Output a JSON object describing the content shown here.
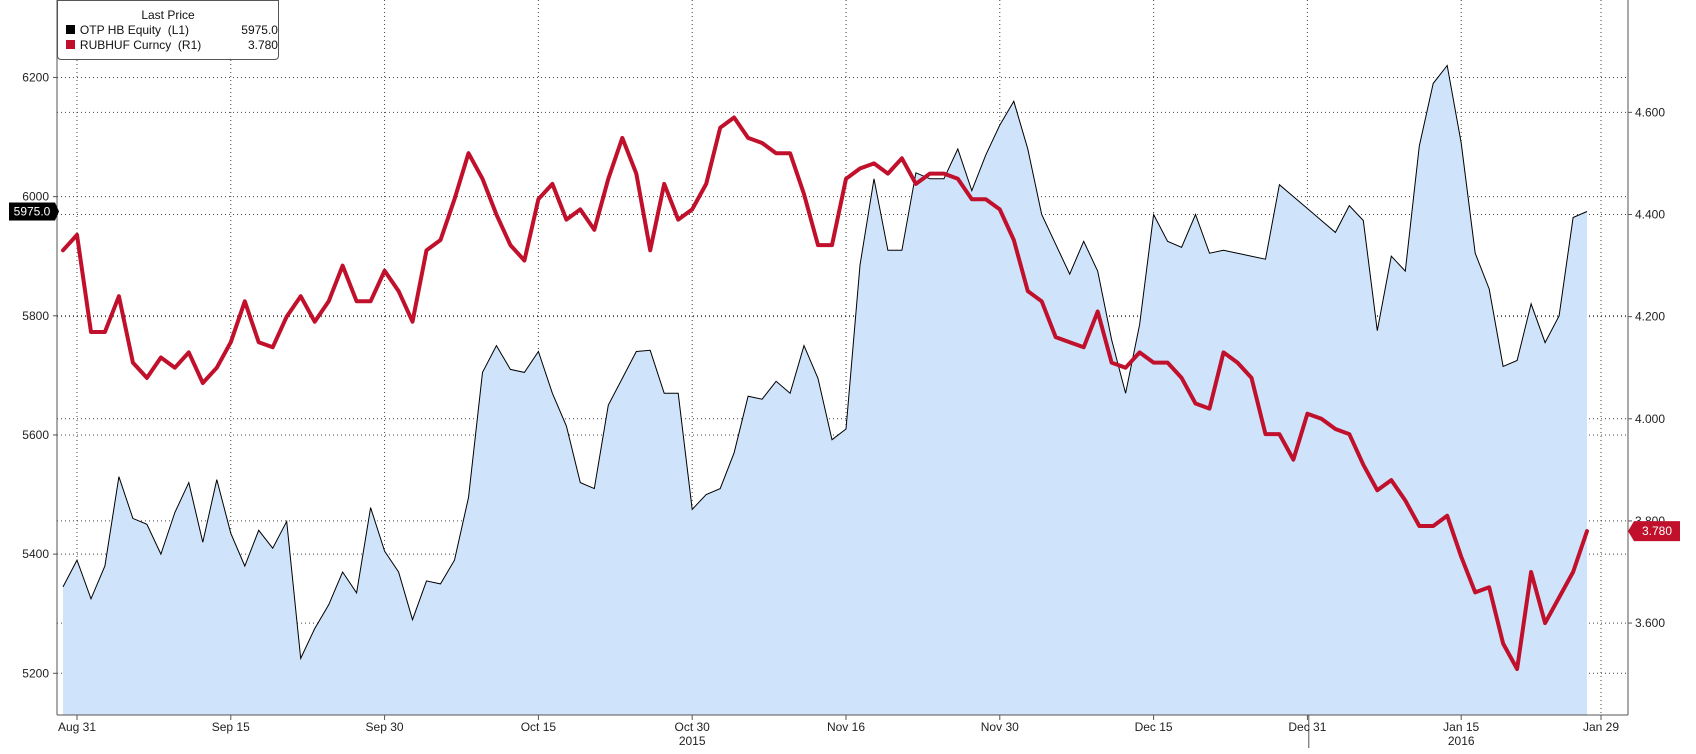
{
  "chart_data": {
    "type": "line",
    "legend": {
      "title": "Last Price",
      "placement": "top-left",
      "entries": [
        {
          "name": "OTP HB Equity  (L1)",
          "value": "5975.0",
          "color": "#000000"
        },
        {
          "name": "RUBHUF Curncy  (R1)",
          "value": "3.780",
          "color": "#c0102c"
        }
      ]
    },
    "x_ticks": [
      {
        "label": "Aug 31",
        "index": 1
      },
      {
        "label": "Sep 15",
        "index": 12
      },
      {
        "label": "Sep 30",
        "index": 23
      },
      {
        "label": "Oct 15",
        "index": 34
      },
      {
        "label": "Oct 30",
        "index": 45
      },
      {
        "label": "Nov 16",
        "index": 56
      },
      {
        "label": "Nov 30",
        "index": 67
      },
      {
        "label": "Dec 15",
        "index": 78
      },
      {
        "label": "Dec 31",
        "index": 89
      },
      {
        "label": "Jan 15",
        "index": 100
      },
      {
        "label": "Jan 29",
        "index": 110
      }
    ],
    "year_labels": [
      {
        "label": "2015",
        "index": 45
      },
      {
        "label": "2016",
        "index": 100
      }
    ],
    "x_range": [
      0,
      111
    ],
    "left_axis": {
      "ticks": [
        5200,
        5400,
        5600,
        5800,
        6000,
        6200
      ],
      "ylim": [
        5130,
        6330
      ]
    },
    "right_axis": {
      "ticks": [
        "3.600",
        "3.800",
        "4.000",
        "4.200",
        "4.400",
        "4.600"
      ],
      "ylim": [
        3.42,
        4.82
      ]
    },
    "grid": true,
    "series": [
      {
        "name": "OTP HB Equity  (L1)",
        "axis": "left",
        "style": "area",
        "color": "#000000",
        "fill": "#cfe4fb",
        "last_value_label": "5975.0",
        "values": [
          5345,
          5390,
          5325,
          5380,
          5530,
          5460,
          5450,
          5400,
          5470,
          5520,
          5420,
          5525,
          5435,
          5380,
          5440,
          5410,
          5455,
          5225,
          5275,
          5315,
          5370,
          5335,
          5478,
          5405,
          5370,
          5290,
          5355,
          5350,
          5390,
          5495,
          5705,
          5750,
          5710,
          5705,
          5740,
          5670,
          5615,
          5520,
          5510,
          5650,
          5695,
          5740,
          5742,
          5670,
          5670,
          5475,
          5500,
          5510,
          5570,
          5665,
          5660,
          5690,
          5670,
          5750,
          5695,
          5592,
          5610,
          5885,
          6030,
          5910,
          5910,
          6040,
          6030,
          6030,
          6080,
          6010,
          6070,
          6120,
          6160,
          6080,
          5970,
          5920,
          5870,
          5925,
          5875,
          5760,
          5670,
          5785,
          5970,
          5925,
          5915,
          5970,
          5905,
          5910,
          5905,
          5900,
          5895,
          6020,
          6000,
          5980,
          5960,
          5940,
          5985,
          5960,
          5775,
          5900,
          5875,
          6085,
          6190,
          6220,
          6090,
          5905,
          5845,
          5715,
          5725,
          5820,
          5755,
          5800,
          5965,
          5975
        ]
      },
      {
        "name": "RUBHUF Curncy  (R1)",
        "axis": "right",
        "style": "line",
        "color": "#c0102c",
        "last_value_label": "3.780",
        "values": [
          4.33,
          4.36,
          4.17,
          4.17,
          4.24,
          4.11,
          4.08,
          4.12,
          4.1,
          4.13,
          4.07,
          4.1,
          4.15,
          4.23,
          4.15,
          4.14,
          4.2,
          4.24,
          4.19,
          4.23,
          4.3,
          4.23,
          4.23,
          4.29,
          4.25,
          4.19,
          4.33,
          4.35,
          4.43,
          4.52,
          4.47,
          4.4,
          4.34,
          4.31,
          4.43,
          4.46,
          4.39,
          4.41,
          4.37,
          4.47,
          4.55,
          4.48,
          4.33,
          4.46,
          4.39,
          4.41,
          4.46,
          4.57,
          4.59,
          4.55,
          4.54,
          4.52,
          4.52,
          4.44,
          4.34,
          4.34,
          4.47,
          4.49,
          4.5,
          4.48,
          4.51,
          4.46,
          4.48,
          4.48,
          4.47,
          4.43,
          4.43,
          4.41,
          4.35,
          4.25,
          4.23,
          4.16,
          4.15,
          4.14,
          4.21,
          4.11,
          4.1,
          4.13,
          4.11,
          4.11,
          4.08,
          4.03,
          4.02,
          4.13,
          4.11,
          4.08,
          3.97,
          3.97,
          3.92,
          4.01,
          4.0,
          3.98,
          3.97,
          3.91,
          3.86,
          3.88,
          3.84,
          3.79,
          3.79,
          3.81,
          3.73,
          3.66,
          3.67,
          3.56,
          3.51,
          3.7,
          3.6,
          3.65,
          3.7,
          3.78
        ]
      }
    ]
  }
}
